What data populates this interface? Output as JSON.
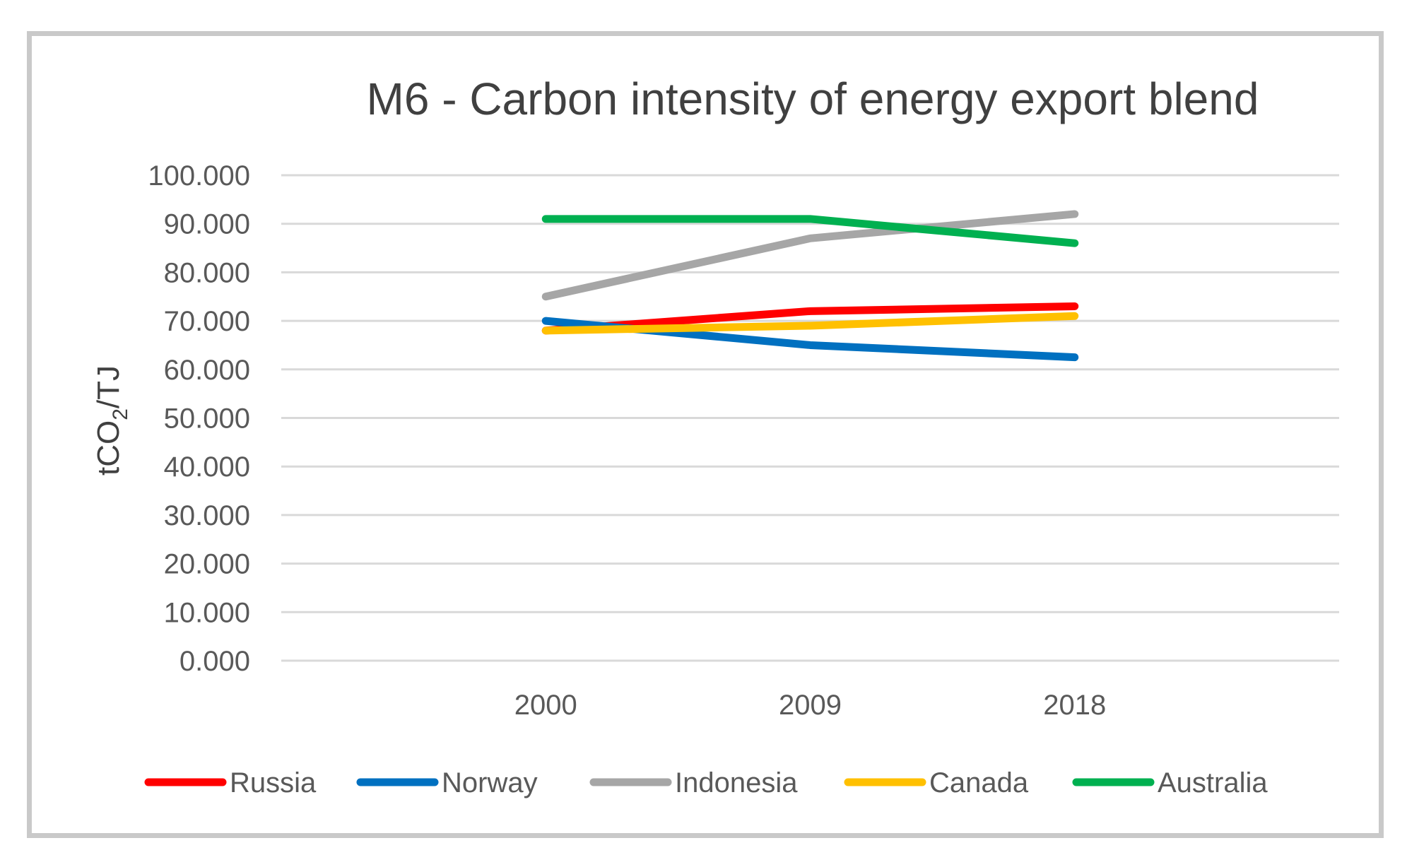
{
  "chart_data": {
    "type": "line",
    "title": "M6 - Carbon intensity of energy export blend",
    "xlabel": "",
    "ylabel": "tCO2/TJ",
    "ylabel_main": "tCO",
    "ylabel_sub": "2",
    "ylabel_tail": "/TJ",
    "categories": [
      "2000",
      "2009",
      "2018"
    ],
    "ylim": [
      0,
      100
    ],
    "yticks": [
      0,
      10,
      20,
      30,
      40,
      50,
      60,
      70,
      80,
      90,
      100
    ],
    "ytick_labels": [
      "0.000",
      "10.000",
      "20.000",
      "30.000",
      "40.000",
      "50.000",
      "60.000",
      "70.000",
      "80.000",
      "90.000",
      "100.000"
    ],
    "grid": true,
    "legend_position": "bottom",
    "series": [
      {
        "name": "Russia",
        "color": "#ff0000",
        "values": [
          68,
          72,
          73
        ]
      },
      {
        "name": "Norway",
        "color": "#0070c0",
        "values": [
          70,
          65,
          62.5
        ]
      },
      {
        "name": "Indonesia",
        "color": "#a6a6a6",
        "values": [
          75,
          87,
          92
        ]
      },
      {
        "name": "Canada",
        "color": "#ffc000",
        "values": [
          68,
          69,
          71
        ]
      },
      {
        "name": "Australia",
        "color": "#00b050",
        "values": [
          91,
          91,
          86
        ]
      }
    ]
  }
}
